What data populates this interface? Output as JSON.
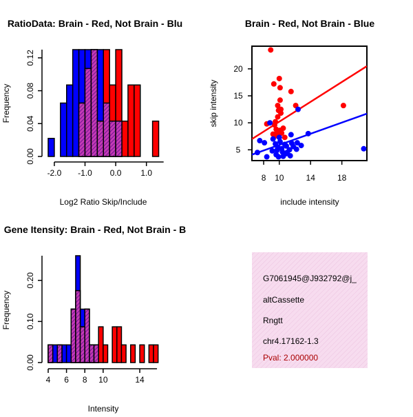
{
  "colors": {
    "red": "#ff0000",
    "blue": "#0000ff",
    "overlap": "#9a1a9a",
    "panel_bg": "#f6d8ec",
    "pval": "#aa0000"
  },
  "chart_data": [
    {
      "id": "hist_ratio",
      "type": "bar",
      "title": "RatioData: Brain - Red, Not Brain - Blu",
      "xlabel": "Log2 Ratio Skip/Include",
      "ylabel": "Frequency",
      "xlim": [
        -2.2,
        1.5
      ],
      "ylim": [
        0,
        0.13
      ],
      "xticks": [
        -2.0,
        -1.0,
        0.0,
        1.0
      ],
      "xtick_labels": [
        "-2.0",
        "-1.0",
        "0.0",
        "1.0"
      ],
      "yticks": [
        0,
        0.04,
        0.08,
        0.12
      ],
      "ytick_labels": [
        "0.00",
        "0.04",
        "0.08",
        "0.12"
      ],
      "bin_width": 0.2,
      "series": [
        {
          "name": "Not Brain",
          "color": "blue",
          "bins": [
            [
              -2.2,
              0.022
            ],
            [
              -2.0,
              0
            ],
            [
              -1.8,
              0.065
            ],
            [
              -1.6,
              0.087
            ],
            [
              -1.4,
              0.13
            ],
            [
              -1.2,
              0.13
            ],
            [
              -1.0,
              0.13
            ],
            [
              -0.8,
              0.13
            ],
            [
              -0.6,
              0.13
            ],
            [
              -0.4,
              0.065
            ],
            [
              -0.2,
              0.043
            ],
            [
              0.0,
              0.043
            ],
            [
              0.2,
              0
            ],
            [
              0.4,
              0
            ],
            [
              0.6,
              0
            ],
            [
              0.8,
              0
            ],
            [
              1.0,
              0
            ],
            [
              1.2,
              0
            ]
          ]
        },
        {
          "name": "Brain",
          "color": "red",
          "bins": [
            [
              -2.2,
              0
            ],
            [
              -2.0,
              0
            ],
            [
              -1.8,
              0
            ],
            [
              -1.6,
              0
            ],
            [
              -1.4,
              0
            ],
            [
              -1.2,
              0.065
            ],
            [
              -1.0,
              0.107
            ],
            [
              -0.8,
              0.13
            ],
            [
              -0.6,
              0.043
            ],
            [
              -0.4,
              0.13
            ],
            [
              -0.2,
              0.087
            ],
            [
              0.0,
              0.13
            ],
            [
              0.2,
              0.043
            ],
            [
              0.4,
              0.087
            ],
            [
              0.6,
              0.087
            ],
            [
              0.8,
              0
            ],
            [
              1.0,
              0
            ],
            [
              1.2,
              0.043
            ]
          ]
        }
      ]
    },
    {
      "id": "scatter",
      "type": "scatter",
      "title": "Brain - Red, Not Brain - Blue",
      "xlabel": "include intensity",
      "ylabel": "skip intensity",
      "xlim": [
        6.5,
        21.2
      ],
      "ylim": [
        3,
        24.2
      ],
      "xticks": [
        8,
        10,
        14,
        18
      ],
      "yticks": [
        5,
        10,
        15,
        20
      ],
      "series": [
        {
          "name": "Brain",
          "color": "red",
          "points": [
            [
              8.9,
              23.5
            ],
            [
              9.3,
              17.2
            ],
            [
              10.0,
              18.2
            ],
            [
              10.1,
              16.5
            ],
            [
              11.5,
              15.8
            ],
            [
              10.1,
              14.2
            ],
            [
              9.8,
              13.2
            ],
            [
              9.9,
              12.3
            ],
            [
              12.1,
              13.2
            ],
            [
              10.2,
              12.5
            ],
            [
              18.2,
              13.2
            ],
            [
              10.2,
              11.8
            ],
            [
              9.8,
              11.1
            ],
            [
              9.5,
              10.2
            ],
            [
              8.4,
              9.8
            ],
            [
              9.4,
              9.6
            ],
            [
              10.5,
              9.0
            ],
            [
              10.1,
              8.6
            ],
            [
              9.6,
              8.8
            ],
            [
              9.7,
              8.2
            ],
            [
              10.3,
              8.1
            ],
            [
              10.7,
              7.3
            ],
            [
              9.2,
              7.9
            ],
            [
              9.4,
              7.5
            ],
            [
              9.9,
              7.6
            ]
          ]
        },
        {
          "name": "Not Brain",
          "color": "blue",
          "points": [
            [
              12.4,
              12.5
            ],
            [
              8.8,
              10.0
            ],
            [
              13.7,
              8.0
            ],
            [
              11.5,
              7.8
            ],
            [
              8.1,
              6.3
            ],
            [
              7.5,
              6.7
            ],
            [
              7.2,
              4.5
            ],
            [
              9.2,
              7.0
            ],
            [
              9.5,
              6.1
            ],
            [
              9.8,
              5.5
            ],
            [
              10.1,
              6.5
            ],
            [
              10.3,
              5.2
            ],
            [
              10.4,
              4.6
            ],
            [
              10.7,
              6.0
            ],
            [
              10.9,
              5.7
            ],
            [
              11.0,
              4.5
            ],
            [
              11.3,
              5.0
            ],
            [
              11.6,
              6.2
            ],
            [
              11.8,
              5.6
            ],
            [
              12.2,
              5.1
            ],
            [
              12.8,
              5.8
            ],
            [
              9.6,
              4.1
            ],
            [
              9.9,
              3.7
            ],
            [
              10.5,
              3.8
            ],
            [
              10.9,
              4.3
            ],
            [
              11.4,
              3.9
            ],
            [
              8.4,
              3.7
            ],
            [
              9.1,
              4.8
            ],
            [
              9.7,
              4.9
            ],
            [
              20.8,
              5.2
            ],
            [
              10.0,
              7.3
            ],
            [
              12.3,
              6.3
            ]
          ]
        }
      ],
      "fit_lines": [
        {
          "name": "Brain",
          "color": "red",
          "points": [
            [
              6.5,
              7.0
            ],
            [
              21.2,
              20.5
            ]
          ]
        },
        {
          "name": "Not Brain",
          "color": "blue",
          "points": [
            [
              6.5,
              4.1
            ],
            [
              21.2,
              11.7
            ]
          ]
        }
      ]
    },
    {
      "id": "hist_intensity",
      "type": "bar",
      "title": "Gene Itensity: Brain - Red, Not Brain - B",
      "xlabel": "Intensity",
      "ylabel": "Frequency",
      "xlim": [
        4,
        16.1
      ],
      "ylim": [
        0,
        0.26
      ],
      "xticks": [
        4,
        6,
        8,
        10,
        14
      ],
      "yticks": [
        0,
        0.1,
        0.2
      ],
      "ytick_labels": [
        "0.00",
        "0.10",
        "0.20"
      ],
      "bin_width": 0.5,
      "series": [
        {
          "name": "Not Brain",
          "color": "blue",
          "bins": [
            [
              4.0,
              0.043
            ],
            [
              4.5,
              0.043
            ],
            [
              5.0,
              0.043
            ],
            [
              5.5,
              0.043
            ],
            [
              6.0,
              0.043
            ],
            [
              6.5,
              0.13
            ],
            [
              7.0,
              0.26
            ],
            [
              7.5,
              0.13
            ],
            [
              8.0,
              0.13
            ],
            [
              8.5,
              0.043
            ],
            [
              9.0,
              0.043
            ],
            [
              9.5,
              0
            ],
            [
              10.0,
              0
            ],
            [
              10.5,
              0
            ],
            [
              11.0,
              0
            ],
            [
              11.5,
              0
            ],
            [
              12.0,
              0
            ],
            [
              12.5,
              0
            ],
            [
              13.0,
              0
            ],
            [
              13.5,
              0
            ],
            [
              14.0,
              0
            ],
            [
              14.5,
              0
            ],
            [
              15.0,
              0
            ],
            [
              15.5,
              0
            ]
          ]
        },
        {
          "name": "Brain",
          "color": "red",
          "bins": [
            [
              4.0,
              0.043
            ],
            [
              4.5,
              0
            ],
            [
              5.0,
              0.043
            ],
            [
              5.5,
              0
            ],
            [
              6.0,
              0
            ],
            [
              6.5,
              0.13
            ],
            [
              7.0,
              0.175
            ],
            [
              7.5,
              0.087
            ],
            [
              8.0,
              0.13
            ],
            [
              8.5,
              0.043
            ],
            [
              9.0,
              0.043
            ],
            [
              9.5,
              0.087
            ],
            [
              10.0,
              0.043
            ],
            [
              10.5,
              0
            ],
            [
              11.0,
              0.087
            ],
            [
              11.5,
              0.087
            ],
            [
              12.0,
              0.043
            ],
            [
              12.5,
              0
            ],
            [
              13.0,
              0.043
            ],
            [
              13.5,
              0
            ],
            [
              14.0,
              0.043
            ],
            [
              14.5,
              0
            ],
            [
              15.0,
              0.043
            ],
            [
              15.5,
              0.043
            ]
          ]
        }
      ]
    }
  ],
  "info": {
    "id": "G7061945@J932792@j_",
    "event": "altCassette",
    "gene": "Rngtt",
    "location": "chr4.17162-1.3",
    "pval": "Pval: 2.000000"
  }
}
